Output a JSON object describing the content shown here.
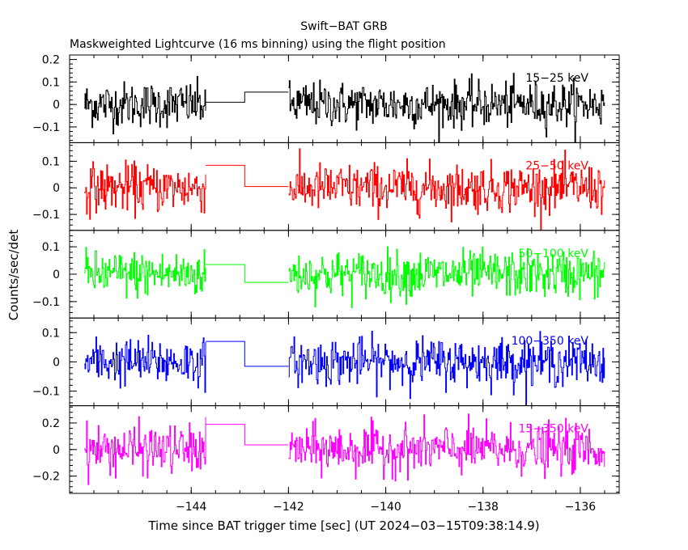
{
  "chart_data": {
    "type": "line",
    "title": "Swift−BAT GRB",
    "subtitle": "Maskweighted Lightcurve (16 ms binning) using the flight position",
    "xlabel": "Time since BAT trigger time [sec] (UT 2024−03−15T09:38:14.9)",
    "ylabel": "Counts/sec/det",
    "xlim": [
      -146.5,
      -135.2
    ],
    "xticks": [
      -144,
      -142,
      -140,
      -138,
      -136
    ],
    "xtick_labels": [
      "−144",
      "−142",
      "−140",
      "−138",
      "−136"
    ],
    "data_range": [
      -146.2,
      -135.5
    ],
    "gap": [
      -143.7,
      -142.0
    ],
    "grid": false,
    "series": [
      {
        "name": "15−25 keV",
        "color": "#000000",
        "ylim": [
          -0.17,
          0.22
        ],
        "yticks": [
          -0.1,
          0,
          0.1,
          0.2
        ],
        "ytick_labels": [
          "−0.1",
          "0",
          "0.1",
          "0.2"
        ],
        "noise_amplitude": 0.05,
        "gap_steps": [
          {
            "x0": -143.7,
            "x1": -142.9,
            "y": 0.01
          },
          {
            "x0": -142.9,
            "x1": -142.0,
            "y": 0.055
          }
        ]
      },
      {
        "name": "25−50 keV",
        "color": "#ff0000",
        "ylim": [
          -0.16,
          0.17
        ],
        "yticks": [
          -0.1,
          0,
          0.1
        ],
        "ytick_labels": [
          "−0.1",
          "0",
          "0.1"
        ],
        "noise_amplitude": 0.045,
        "gap_steps": [
          {
            "x0": -143.7,
            "x1": -142.9,
            "y": 0.085
          },
          {
            "x0": -142.9,
            "x1": -142.0,
            "y": 0.005
          }
        ]
      },
      {
        "name": "50−100 keV",
        "color": "#00ff00",
        "ylim": [
          -0.16,
          0.16
        ],
        "yticks": [
          -0.1,
          0,
          0.1
        ],
        "ytick_labels": [
          "−0.1",
          "0",
          "0.1"
        ],
        "noise_amplitude": 0.042,
        "gap_steps": [
          {
            "x0": -143.7,
            "x1": -142.9,
            "y": 0.035
          },
          {
            "x0": -142.9,
            "x1": -142.0,
            "y": -0.03
          }
        ]
      },
      {
        "name": "100−350 keV",
        "color": "#0000ff",
        "ylim": [
          -0.15,
          0.15
        ],
        "yticks": [
          -0.1,
          0,
          0.1
        ],
        "ytick_labels": [
          "−0.1",
          "0",
          "0.1"
        ],
        "noise_amplitude": 0.04,
        "gap_steps": [
          {
            "x0": -143.7,
            "x1": -142.9,
            "y": 0.07
          },
          {
            "x0": -142.9,
            "x1": -142.0,
            "y": -0.015
          }
        ]
      },
      {
        "name": "15−350 keV",
        "color": "#ff00ff",
        "ylim": [
          -0.33,
          0.33
        ],
        "yticks": [
          -0.2,
          0,
          0.2
        ],
        "ytick_labels": [
          "−0.2",
          "0",
          "0.2"
        ],
        "noise_amplitude": 0.09,
        "gap_steps": [
          {
            "x0": -143.7,
            "x1": -142.9,
            "y": 0.19
          },
          {
            "x0": -142.9,
            "x1": -142.0,
            "y": 0.035
          }
        ]
      }
    ]
  }
}
